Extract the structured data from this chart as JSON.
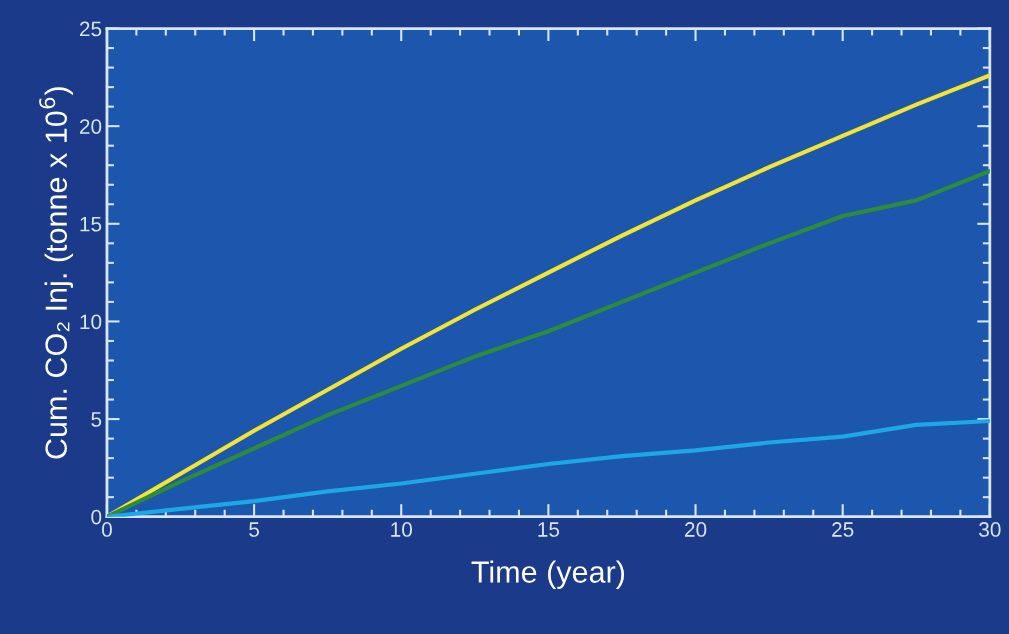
{
  "chart_data": {
    "type": "line",
    "xlabel": "Time (year)",
    "ylabel": "Cum. CO₂ Inj. (tonne x 10$^{6}$)",
    "x": [
      0,
      2.5,
      5,
      7.5,
      10,
      12.5,
      15,
      17.5,
      20,
      22.5,
      25,
      27.5,
      30
    ],
    "series": [
      {
        "color": "#f2e433",
        "values": [
          0,
          2.2,
          4.4,
          6.5,
          8.6,
          10.6,
          12.5,
          14.4,
          16.2,
          17.9,
          19.5,
          21.1,
          22.6
        ]
      },
      {
        "color": "#2e8b3c",
        "values": [
          0,
          1.8,
          3.5,
          5.2,
          6.7,
          8.2,
          9.5,
          11.0,
          12.5,
          14.0,
          15.4,
          16.2,
          17.7
        ]
      },
      {
        "color": "#1ca8e6",
        "values": [
          0,
          0.4,
          0.8,
          1.3,
          1.7,
          2.2,
          2.7,
          3.1,
          3.4,
          3.8,
          4.1,
          4.7,
          4.9
        ]
      }
    ],
    "xlim": [
      0,
      30
    ],
    "xticks": [
      0,
      5,
      10,
      15,
      20,
      25,
      30
    ],
    "ylim": [
      0,
      25
    ],
    "yticks": [
      0,
      5,
      10,
      15,
      20,
      25
    ],
    "grid": false,
    "marker": "none",
    "line_style": "solid"
  }
}
